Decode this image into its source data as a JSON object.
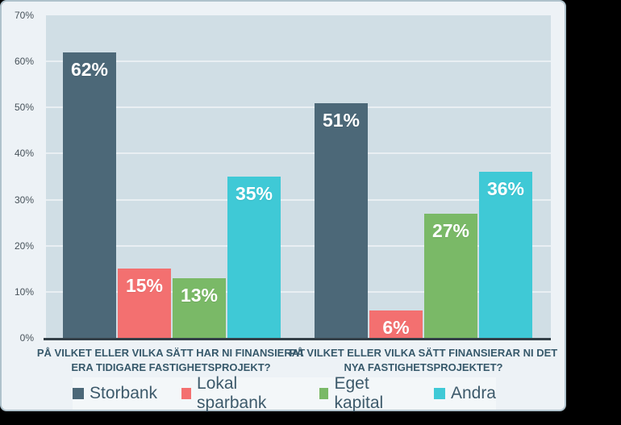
{
  "chart_data": {
    "type": "bar",
    "categories": [
      "PÅ VILKET ELLER VILKA SÄTT HAR NI FINANSIERAT\nERA TIDIGARE FASTIGHETSPROJEKT?",
      "PÅ VILKET ELLER VILKA SÄTT FINANSIERAR NI DET\nNYA FASTIGHETSPROJEKTET?"
    ],
    "series": [
      {
        "name": "Storbank",
        "color": "#4C6878",
        "values": [
          62,
          51
        ]
      },
      {
        "name": "Lokal sparbank",
        "color": "#F37070",
        "values": [
          15,
          6
        ]
      },
      {
        "name": "Eget kapital",
        "color": "#7AB967",
        "values": [
          13,
          27
        ]
      },
      {
        "name": "Andra",
        "color": "#3FC9D6",
        "values": [
          35,
          36
        ]
      }
    ],
    "value_suffix": "%",
    "data_labels": [
      "62%",
      "15%",
      "13%",
      "35%",
      "51%",
      "6%",
      "27%",
      "36%"
    ],
    "ylim": [
      0,
      70
    ],
    "yticks": [
      "0%",
      "10%",
      "20%",
      "30%",
      "40%",
      "50%",
      "60%",
      "70%"
    ],
    "grid": true,
    "legend_position": "bottom",
    "legend_entries": [
      "Storbank",
      "Lokal sparbank",
      "Eget kapital",
      "Andra"
    ]
  },
  "colors": {
    "card_background": "#EDF2F6",
    "plot_background": "#D0DEE5",
    "gridline": "#E9EFF3",
    "axis_line": "#333F47",
    "tick_text": "#47525A",
    "category_text": "#37596B",
    "legend_strip": "#F3F7F9",
    "legend_text": "#3D5A6B",
    "bar_label_text": "#FFFFFF",
    "outer_background": "#000000"
  }
}
